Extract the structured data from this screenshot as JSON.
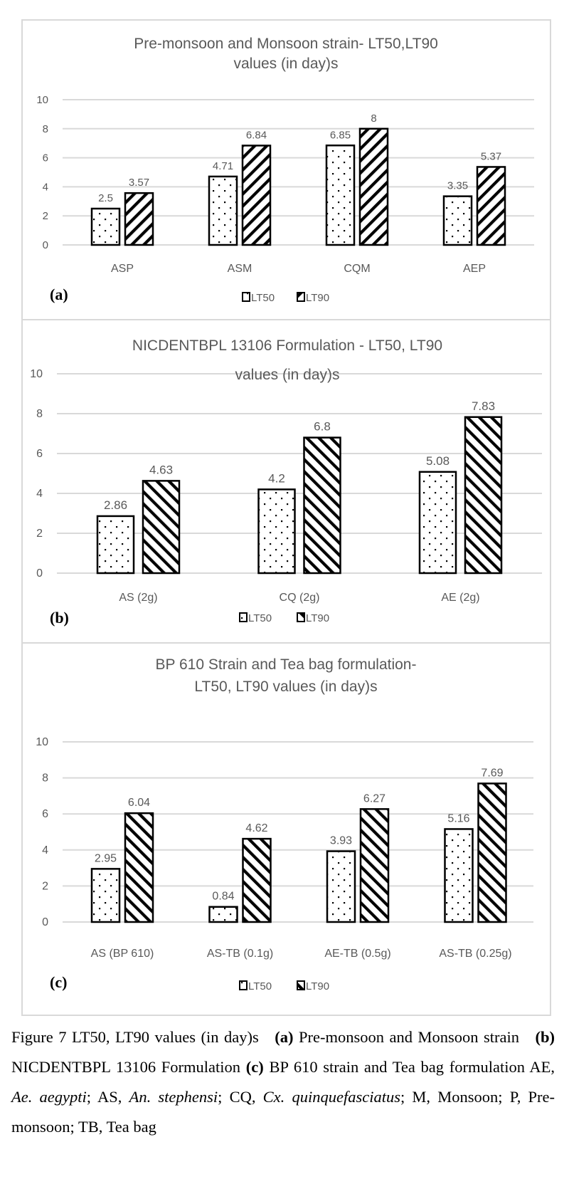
{
  "colors": {
    "frame": "#d9d9d9",
    "grid": "#d9d9d9",
    "text": "#595959",
    "bar_outline": "#000000",
    "bar_fill": "#ffffff"
  },
  "chart_data": [
    {
      "type": "bar",
      "panel_label": "(a)",
      "title": "Pre-monsoon and Monsoon strain- LT50,LT90 values (in day)s",
      "title_lines": [
        "Pre-monsoon and Monsoon strain- LT50,LT90",
        "values (in day)s"
      ],
      "categories": [
        "ASP",
        "ASM",
        "CQM",
        "AEP"
      ],
      "series": [
        {
          "name": "LT50",
          "pattern": "dots",
          "values": [
            2.5,
            4.71,
            6.85,
            3.35
          ],
          "labels": [
            "2.5",
            "4.71",
            "6.85",
            "3.35"
          ]
        },
        {
          "name": "LT90",
          "pattern": "backslash-hatch",
          "values": [
            3.57,
            6.84,
            8,
            5.37
          ],
          "labels": [
            "3.57",
            "6.84",
            "8",
            "5.37"
          ]
        }
      ],
      "yticks": [
        "0",
        "2",
        "4",
        "6",
        "8",
        "10"
      ],
      "ylim": [
        0,
        10
      ],
      "xlabel": "",
      "ylabel": "",
      "grid": true,
      "legend": "bottom-center"
    },
    {
      "type": "bar",
      "panel_label": "(b)",
      "title": "NICDENTBPL 13106 Formulation - LT50, LT90 values (in day)s",
      "title_lines": [
        "NICDENTBPL 13106 Formulation - LT50, LT90",
        "values (in day)s"
      ],
      "categories": [
        "AS (2g)",
        "CQ (2g)",
        "AE (2g)"
      ],
      "series": [
        {
          "name": "LT50",
          "pattern": "dots",
          "values": [
            2.86,
            4.2,
            5.08
          ],
          "labels": [
            "2.86",
            "4.2",
            "5.08"
          ]
        },
        {
          "name": "LT90",
          "pattern": "slash-hatch",
          "values": [
            4.63,
            6.8,
            7.83
          ],
          "labels": [
            "4.63",
            "6.8",
            "7.83"
          ]
        }
      ],
      "yticks": [
        "0",
        "2",
        "4",
        "6",
        "8",
        "10"
      ],
      "ylim": [
        0,
        10
      ],
      "xlabel": "",
      "ylabel": "",
      "grid": true,
      "legend": "bottom-center"
    },
    {
      "type": "bar",
      "panel_label": "(c)",
      "title": "BP 610 Strain and Tea bag formulation- LT50, LT90 values (in day)s",
      "title_lines": [
        "BP 610 Strain and Tea bag formulation-",
        "LT50, LT90 values (in day)s"
      ],
      "categories": [
        "AS (BP 610)",
        "AS-TB (0.1g)",
        "AE-TB (0.5g)",
        "AS-TB (0.25g)"
      ],
      "series": [
        {
          "name": "LT50",
          "pattern": "dots",
          "values": [
            2.95,
            0.84,
            3.93,
            5.16
          ],
          "labels": [
            "2.95",
            "0.84",
            "3.93",
            "5.16"
          ]
        },
        {
          "name": "LT90",
          "pattern": "slash-hatch",
          "values": [
            6.04,
            4.62,
            6.27,
            7.69
          ],
          "labels": [
            "6.04",
            "4.62",
            "6.27",
            "7.69"
          ]
        }
      ],
      "yticks": [
        "0",
        "2",
        "4",
        "6",
        "8",
        "10"
      ],
      "ylim": [
        0,
        10
      ],
      "xlabel": "",
      "ylabel": "",
      "grid": true,
      "legend": "bottom-center"
    }
  ],
  "caption": {
    "figure": "Figure 7 LT50, LT90 values (in day)s",
    "part_a_label": "(a)",
    "part_a_text": "Pre-monsoon and Monsoon strain",
    "part_b_label": "(b)",
    "part_b_text": "NICDENTBPL 13106 Formulation",
    "part_c_label": "(c)",
    "part_c_text": "BP 610 strain and Tea bag formulation AE,",
    "ae_species": "Ae. aegypti",
    "as_abbrev": "; AS,",
    "as_species": "An. stephensi",
    "cq_abbrev": "; CQ,",
    "cq_species": "Cx. quinquefasciatus",
    "rest": "; M, Monsoon; P, Pre-monsoon; TB, Tea bag"
  }
}
